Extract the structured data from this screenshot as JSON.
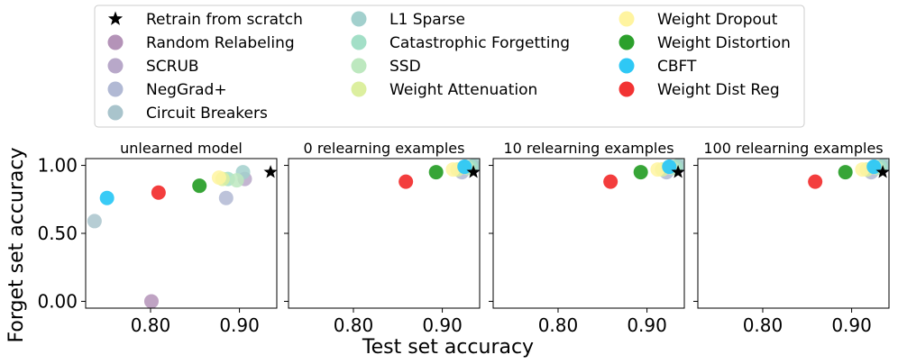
{
  "legend": {
    "placement": "top",
    "entries": [
      {
        "key": "retrain",
        "label": "Retrain from scratch",
        "color": "#000000",
        "marker": "star"
      },
      {
        "key": "random_relabeling",
        "label": "Random Relabeling",
        "color": "#b493b8",
        "marker": "circle"
      },
      {
        "key": "scrub",
        "label": "SCRUB",
        "color": "#b8a8c9",
        "marker": "circle"
      },
      {
        "key": "neggrad",
        "label": "NegGrad+",
        "color": "#b1b9d4",
        "marker": "circle"
      },
      {
        "key": "circuit_breakers",
        "label": "Circuit Breakers",
        "color": "#a9c4cc",
        "marker": "circle"
      },
      {
        "key": "l1_sparse",
        "label": "L1 Sparse",
        "color": "#a2d0cd",
        "marker": "circle"
      },
      {
        "key": "catastrophic_forgetting",
        "label": "Catastrophic Forgetting",
        "color": "#a3dfc7",
        "marker": "circle"
      },
      {
        "key": "ssd",
        "label": "SSD",
        "color": "#bde8bf",
        "marker": "circle"
      },
      {
        "key": "weight_attenuation",
        "label": "Weight Attenuation",
        "color": "#dcef9f",
        "marker": "circle"
      },
      {
        "key": "weight_dropout",
        "label": "Weight Dropout",
        "color": "#fff4a0",
        "marker": "circle"
      },
      {
        "key": "weight_distortion",
        "label": "Weight Distortion",
        "color": "#2ca02c",
        "marker": "circle"
      },
      {
        "key": "cbft",
        "label": "CBFT",
        "color": "#2ec8f5",
        "marker": "circle"
      },
      {
        "key": "weight_dist_reg",
        "label": "Weight Dist Reg",
        "color": "#f23333",
        "marker": "circle"
      }
    ]
  },
  "axes_text": {
    "xlabel": "Test set accuracy",
    "ylabel": "Forget set accuracy"
  },
  "chart_data": [
    {
      "type": "scatter",
      "title": "unlearned model",
      "xlim": [
        0.727,
        0.942
      ],
      "ylim": [
        -0.05,
        1.05
      ],
      "xticks": [
        0.8,
        0.9
      ],
      "xtick_labels": [
        "0.80",
        "0.90"
      ],
      "yticks": [
        0.0,
        0.5,
        1.0
      ],
      "ytick_labels": [
        "0.00",
        "0.50",
        "1.00"
      ],
      "grid": false,
      "points": [
        {
          "series": "random_relabeling",
          "x": 0.801,
          "y": 0.0
        },
        {
          "series": "scrub",
          "x": 0.906,
          "y": 0.9
        },
        {
          "series": "neggrad",
          "x": 0.885,
          "y": 0.76
        },
        {
          "series": "circuit_breakers",
          "x": 0.737,
          "y": 0.59
        },
        {
          "series": "l1_sparse",
          "x": 0.904,
          "y": 0.95
        },
        {
          "series": "catastrophic_forgetting",
          "x": 0.887,
          "y": 0.9
        },
        {
          "series": "ssd",
          "x": 0.897,
          "y": 0.89
        },
        {
          "series": "weight_attenuation",
          "x": 0.881,
          "y": 0.9
        },
        {
          "series": "weight_dropout",
          "x": 0.877,
          "y": 0.91
        },
        {
          "series": "weight_distortion",
          "x": 0.855,
          "y": 0.85
        },
        {
          "series": "cbft",
          "x": 0.751,
          "y": 0.76
        },
        {
          "series": "weight_dist_reg",
          "x": 0.809,
          "y": 0.8
        },
        {
          "series": "retrain",
          "x": 0.935,
          "y": 0.95
        }
      ]
    },
    {
      "type": "scatter",
      "title": "0 relearning examples",
      "xlim": [
        0.727,
        0.942
      ],
      "ylim": [
        -0.05,
        1.05
      ],
      "xticks": [
        0.8,
        0.9
      ],
      "xtick_labels": [
        "0.80",
        "0.90"
      ],
      "grid": false,
      "points": [
        {
          "series": "scrub",
          "x": 0.935,
          "y": 0.99
        },
        {
          "series": "neggrad",
          "x": 0.922,
          "y": 0.95
        },
        {
          "series": "circuit_breakers",
          "x": 0.926,
          "y": 0.99
        },
        {
          "series": "l1_sparse",
          "x": 0.936,
          "y": 1.0
        },
        {
          "series": "catastrophic_forgetting",
          "x": 0.932,
          "y": 0.99
        },
        {
          "series": "ssd",
          "x": 0.929,
          "y": 0.98
        },
        {
          "series": "weight_attenuation",
          "x": 0.917,
          "y": 0.97
        },
        {
          "series": "weight_dropout",
          "x": 0.912,
          "y": 0.97
        },
        {
          "series": "weight_distortion",
          "x": 0.893,
          "y": 0.95
        },
        {
          "series": "cbft",
          "x": 0.925,
          "y": 0.99
        },
        {
          "series": "weight_dist_reg",
          "x": 0.859,
          "y": 0.88
        },
        {
          "series": "retrain",
          "x": 0.935,
          "y": 0.95
        }
      ]
    },
    {
      "type": "scatter",
      "title": "10 relearning examples",
      "xlim": [
        0.727,
        0.942
      ],
      "ylim": [
        -0.05,
        1.05
      ],
      "xticks": [
        0.8,
        0.9
      ],
      "xtick_labels": [
        "0.80",
        "0.90"
      ],
      "grid": false,
      "points": [
        {
          "series": "scrub",
          "x": 0.935,
          "y": 0.99
        },
        {
          "series": "neggrad",
          "x": 0.922,
          "y": 0.95
        },
        {
          "series": "circuit_breakers",
          "x": 0.926,
          "y": 0.99
        },
        {
          "series": "l1_sparse",
          "x": 0.936,
          "y": 1.0
        },
        {
          "series": "catastrophic_forgetting",
          "x": 0.932,
          "y": 0.99
        },
        {
          "series": "ssd",
          "x": 0.929,
          "y": 0.98
        },
        {
          "series": "weight_attenuation",
          "x": 0.917,
          "y": 0.97
        },
        {
          "series": "weight_dropout",
          "x": 0.912,
          "y": 0.97
        },
        {
          "series": "weight_distortion",
          "x": 0.893,
          "y": 0.95
        },
        {
          "series": "cbft",
          "x": 0.925,
          "y": 0.99
        },
        {
          "series": "weight_dist_reg",
          "x": 0.859,
          "y": 0.88
        },
        {
          "series": "retrain",
          "x": 0.935,
          "y": 0.95
        }
      ]
    },
    {
      "type": "scatter",
      "title": "100 relearning examples",
      "xlim": [
        0.727,
        0.942
      ],
      "ylim": [
        -0.05,
        1.05
      ],
      "xticks": [
        0.8,
        0.9
      ],
      "xtick_labels": [
        "0.80",
        "0.90"
      ],
      "grid": false,
      "points": [
        {
          "series": "scrub",
          "x": 0.935,
          "y": 0.99
        },
        {
          "series": "neggrad",
          "x": 0.922,
          "y": 0.95
        },
        {
          "series": "circuit_breakers",
          "x": 0.926,
          "y": 0.99
        },
        {
          "series": "l1_sparse",
          "x": 0.936,
          "y": 1.0
        },
        {
          "series": "catastrophic_forgetting",
          "x": 0.932,
          "y": 0.99
        },
        {
          "series": "ssd",
          "x": 0.929,
          "y": 0.98
        },
        {
          "series": "weight_attenuation",
          "x": 0.917,
          "y": 0.97
        },
        {
          "series": "weight_dropout",
          "x": 0.912,
          "y": 0.97
        },
        {
          "series": "weight_distortion",
          "x": 0.893,
          "y": 0.95
        },
        {
          "series": "cbft",
          "x": 0.925,
          "y": 0.99
        },
        {
          "series": "weight_dist_reg",
          "x": 0.859,
          "y": 0.88
        },
        {
          "series": "retrain",
          "x": 0.935,
          "y": 0.95
        }
      ]
    }
  ]
}
